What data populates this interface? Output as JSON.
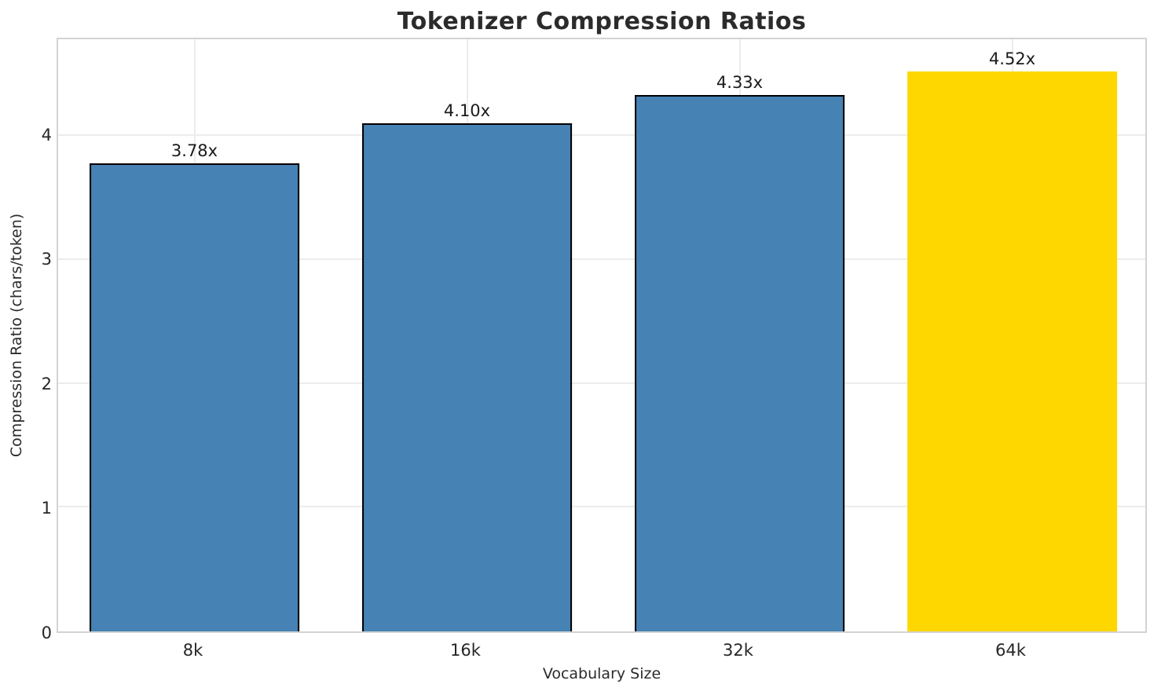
{
  "chart_data": {
    "type": "bar",
    "title": "Tokenizer Compression Ratios",
    "xlabel": "Vocabulary Size",
    "ylabel": "Compression Ratio (chars/token)",
    "categories": [
      "8k",
      "16k",
      "32k",
      "64k"
    ],
    "values": [
      3.78,
      4.1,
      4.33,
      4.52
    ],
    "value_labels": [
      "3.78x",
      "4.10x",
      "4.33x",
      "4.52x"
    ],
    "bar_colors": [
      "#4682B4",
      "#4682B4",
      "#4682B4",
      "#FFD700"
    ],
    "bar_edge_colors": [
      "#000000",
      "#000000",
      "#000000",
      "none"
    ],
    "highlighted_category": "64k",
    "yticks": [
      0,
      1,
      2,
      3,
      4
    ],
    "ylim": [
      0,
      4.78
    ],
    "grid": "both",
    "legend_position": "none"
  },
  "colors": {
    "background": "#FFFFFF",
    "grid": "#ECECEC",
    "spine": "#D3D3D3",
    "title_text": "#2B2B2B",
    "tick_text": "#262626",
    "bar_blue": "#4682B4",
    "bar_gold": "#FFD700",
    "bar_edge": "#000000"
  }
}
